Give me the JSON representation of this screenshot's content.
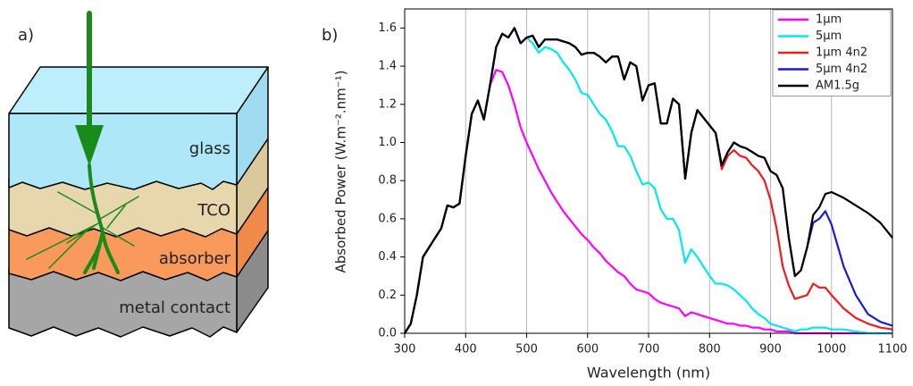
{
  "diagram": {
    "panel_label": "a)",
    "layers": [
      "glass",
      "TCO",
      "absorber",
      "metal contact"
    ]
  },
  "chart_data": {
    "type": "line",
    "panel_label": "b)",
    "x_label": "Wavelength (nm)",
    "y_label": "Absorbed Power (W.m⁻².nm⁻¹)",
    "x": [
      300,
      310,
      320,
      330,
      340,
      350,
      360,
      370,
      380,
      390,
      400,
      410,
      420,
      430,
      440,
      450,
      460,
      470,
      480,
      490,
      500,
      510,
      520,
      530,
      540,
      550,
      560,
      570,
      580,
      590,
      600,
      610,
      620,
      630,
      640,
      650,
      660,
      670,
      680,
      690,
      700,
      710,
      720,
      730,
      740,
      750,
      760,
      770,
      780,
      790,
      800,
      810,
      820,
      830,
      840,
      850,
      860,
      870,
      880,
      890,
      900,
      910,
      920,
      930,
      940,
      950,
      960,
      970,
      980,
      990,
      1000,
      1020,
      1040,
      1060,
      1080,
      1100
    ],
    "series": [
      {
        "name": "1µm",
        "color": "#ff00ff",
        "values": [
          0,
          0.05,
          0.2,
          0.4,
          0.45,
          0.5,
          0.55,
          0.67,
          0.66,
          0.68,
          0.93,
          1.15,
          1.22,
          1.12,
          1.3,
          1.38,
          1.37,
          1.3,
          1.2,
          1.08,
          1.0,
          0.93,
          0.86,
          0.8,
          0.74,
          0.69,
          0.64,
          0.6,
          0.56,
          0.52,
          0.49,
          0.45,
          0.42,
          0.38,
          0.35,
          0.32,
          0.3,
          0.26,
          0.23,
          0.22,
          0.21,
          0.18,
          0.16,
          0.15,
          0.14,
          0.13,
          0.09,
          0.11,
          0.1,
          0.09,
          0.08,
          0.07,
          0.06,
          0.05,
          0.05,
          0.04,
          0.04,
          0.03,
          0.03,
          0.02,
          0.02,
          0.01,
          0.01,
          0.01,
          0,
          0,
          0,
          0,
          0,
          0,
          0,
          0,
          0,
          0,
          0,
          0
        ]
      },
      {
        "name": "5µm",
        "color": "#00e8f0",
        "values": [
          0,
          0.05,
          0.2,
          0.4,
          0.45,
          0.5,
          0.55,
          0.67,
          0.66,
          0.68,
          0.93,
          1.15,
          1.22,
          1.12,
          1.3,
          1.5,
          1.57,
          1.55,
          1.6,
          1.52,
          1.55,
          1.52,
          1.47,
          1.5,
          1.49,
          1.47,
          1.42,
          1.38,
          1.33,
          1.26,
          1.25,
          1.2,
          1.15,
          1.12,
          1.06,
          0.98,
          0.98,
          0.93,
          0.85,
          0.78,
          0.79,
          0.76,
          0.65,
          0.6,
          0.6,
          0.54,
          0.37,
          0.44,
          0.4,
          0.35,
          0.3,
          0.26,
          0.26,
          0.25,
          0.23,
          0.2,
          0.17,
          0.13,
          0.1,
          0.08,
          0.05,
          0.04,
          0.03,
          0.02,
          0.01,
          0.02,
          0.02,
          0.03,
          0.03,
          0.03,
          0.02,
          0.02,
          0.01,
          0,
          0,
          0
        ]
      },
      {
        "name": "1µm 4n2",
        "color": "#ee1c1c",
        "values": [
          0,
          0.05,
          0.2,
          0.4,
          0.45,
          0.5,
          0.55,
          0.67,
          0.66,
          0.68,
          0.93,
          1.15,
          1.22,
          1.12,
          1.3,
          1.5,
          1.57,
          1.55,
          1.6,
          1.52,
          1.55,
          1.56,
          1.5,
          1.54,
          1.54,
          1.54,
          1.53,
          1.52,
          1.5,
          1.46,
          1.47,
          1.47,
          1.45,
          1.42,
          1.45,
          1.45,
          1.33,
          1.42,
          1.4,
          1.22,
          1.3,
          1.31,
          1.1,
          1.1,
          1.23,
          1.2,
          0.81,
          1.05,
          1.17,
          1.13,
          1.09,
          1.05,
          0.86,
          0.93,
          0.96,
          0.93,
          0.92,
          0.88,
          0.85,
          0.8,
          0.7,
          0.55,
          0.35,
          0.25,
          0.18,
          0.19,
          0.2,
          0.26,
          0.24,
          0.24,
          0.2,
          0.13,
          0.08,
          0.05,
          0.03,
          0.02
        ]
      },
      {
        "name": "5µm 4n2",
        "color": "#1a1adb",
        "values": [
          0,
          0.05,
          0.2,
          0.4,
          0.45,
          0.5,
          0.55,
          0.67,
          0.66,
          0.68,
          0.93,
          1.15,
          1.22,
          1.12,
          1.3,
          1.5,
          1.57,
          1.55,
          1.6,
          1.52,
          1.55,
          1.56,
          1.5,
          1.54,
          1.54,
          1.54,
          1.53,
          1.52,
          1.5,
          1.46,
          1.47,
          1.47,
          1.45,
          1.42,
          1.45,
          1.45,
          1.33,
          1.42,
          1.4,
          1.22,
          1.3,
          1.31,
          1.1,
          1.1,
          1.23,
          1.2,
          0.81,
          1.05,
          1.17,
          1.13,
          1.09,
          1.05,
          0.88,
          0.95,
          1.0,
          0.98,
          0.97,
          0.95,
          0.93,
          0.92,
          0.85,
          0.83,
          0.76,
          0.5,
          0.3,
          0.33,
          0.45,
          0.58,
          0.6,
          0.64,
          0.57,
          0.35,
          0.2,
          0.1,
          0.06,
          0.04
        ]
      },
      {
        "name": "AM1.5g",
        "color": "#000000",
        "values": [
          0,
          0.05,
          0.2,
          0.4,
          0.45,
          0.5,
          0.55,
          0.67,
          0.66,
          0.68,
          0.93,
          1.15,
          1.22,
          1.12,
          1.3,
          1.5,
          1.57,
          1.55,
          1.6,
          1.52,
          1.55,
          1.56,
          1.5,
          1.54,
          1.54,
          1.54,
          1.53,
          1.52,
          1.5,
          1.46,
          1.47,
          1.47,
          1.45,
          1.42,
          1.45,
          1.45,
          1.33,
          1.42,
          1.4,
          1.22,
          1.3,
          1.31,
          1.1,
          1.1,
          1.23,
          1.2,
          0.81,
          1.05,
          1.17,
          1.13,
          1.09,
          1.05,
          0.88,
          0.95,
          1.0,
          0.98,
          0.97,
          0.95,
          0.93,
          0.92,
          0.85,
          0.83,
          0.76,
          0.5,
          0.3,
          0.33,
          0.45,
          0.62,
          0.66,
          0.73,
          0.74,
          0.71,
          0.67,
          0.63,
          0.58,
          0.5
        ]
      }
    ],
    "xlim": [
      300,
      1100
    ],
    "xticks": [
      300,
      400,
      500,
      600,
      700,
      800,
      900,
      1000,
      1100
    ],
    "ylim": [
      0,
      1.7
    ],
    "yticks": [
      {
        "value": 0,
        "label": "0.0"
      },
      0.2,
      0.4,
      0.6,
      0.8,
      {
        "value": 1,
        "label": "1.0"
      },
      1.2,
      1.4,
      1.6
    ],
    "xgrid": true,
    "legend": "top-right"
  }
}
